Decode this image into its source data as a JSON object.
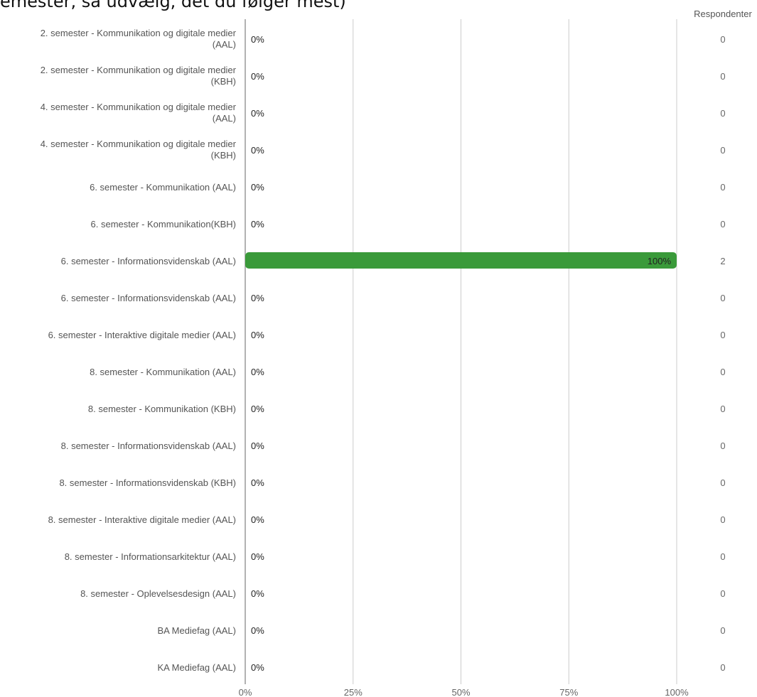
{
  "header": {
    "title": "emester, så udvælg, det du følger mest)"
  },
  "chart_data": {
    "type": "bar",
    "orientation": "horizontal",
    "title": "emester, så udvælg, det du følger mest)",
    "respondents_header": "Respondenter",
    "categories": [
      [
        "2. semester - Kommunikation og digitale medier",
        "(AAL)"
      ],
      [
        "2. semester - Kommunikation og digitale medier",
        "(KBH)"
      ],
      [
        "4. semester - Kommunikation og digitale medier",
        "(AAL)"
      ],
      [
        "4. semester - Kommunikation og digitale medier",
        "(KBH)"
      ],
      [
        "6. semester - Kommunikation (AAL)"
      ],
      [
        "6. semester - Kommunikation(KBH)"
      ],
      [
        "6. semester - Informationsvidenskab (AAL)"
      ],
      [
        "6. semester - Informationsvidenskab (AAL)"
      ],
      [
        "6. semester - Interaktive digitale medier (AAL)"
      ],
      [
        "8. semester - Kommunikation (AAL)"
      ],
      [
        "8. semester - Kommunikation (KBH)"
      ],
      [
        "8. semester - Informationsvidenskab (AAL)"
      ],
      [
        "8. semester - Informationsvidenskab (KBH)"
      ],
      [
        "8. semester - Interaktive digitale medier (AAL)"
      ],
      [
        "8. semester - Informationsarkitektur (AAL)"
      ],
      [
        "8. semester - Oplevelsesdesign (AAL)"
      ],
      [
        "BA Mediefag (AAL)"
      ],
      [
        "KA Mediefag (AAL)"
      ]
    ],
    "values": [
      0,
      0,
      0,
      0,
      0,
      0,
      100,
      0,
      0,
      0,
      0,
      0,
      0,
      0,
      0,
      0,
      0,
      0
    ],
    "value_labels": [
      "0%",
      "0%",
      "0%",
      "0%",
      "0%",
      "0%",
      "100%",
      "0%",
      "0%",
      "0%",
      "0%",
      "0%",
      "0%",
      "0%",
      "0%",
      "0%",
      "0%",
      "0%"
    ],
    "respondents": [
      "0",
      "0",
      "0",
      "0",
      "0",
      "0",
      "2",
      "0",
      "0",
      "0",
      "0",
      "0",
      "0",
      "0",
      "0",
      "0",
      "0",
      "0"
    ],
    "xlim": [
      0,
      100
    ],
    "xticks": [
      0,
      25,
      50,
      75,
      100
    ],
    "xtick_labels": [
      "0%",
      "25%",
      "50%",
      "75%",
      "100%"
    ],
    "grid": true,
    "colors": {
      "bar": "#3a9a3a",
      "grid": "#cccccc",
      "axis": "#999999"
    }
  }
}
